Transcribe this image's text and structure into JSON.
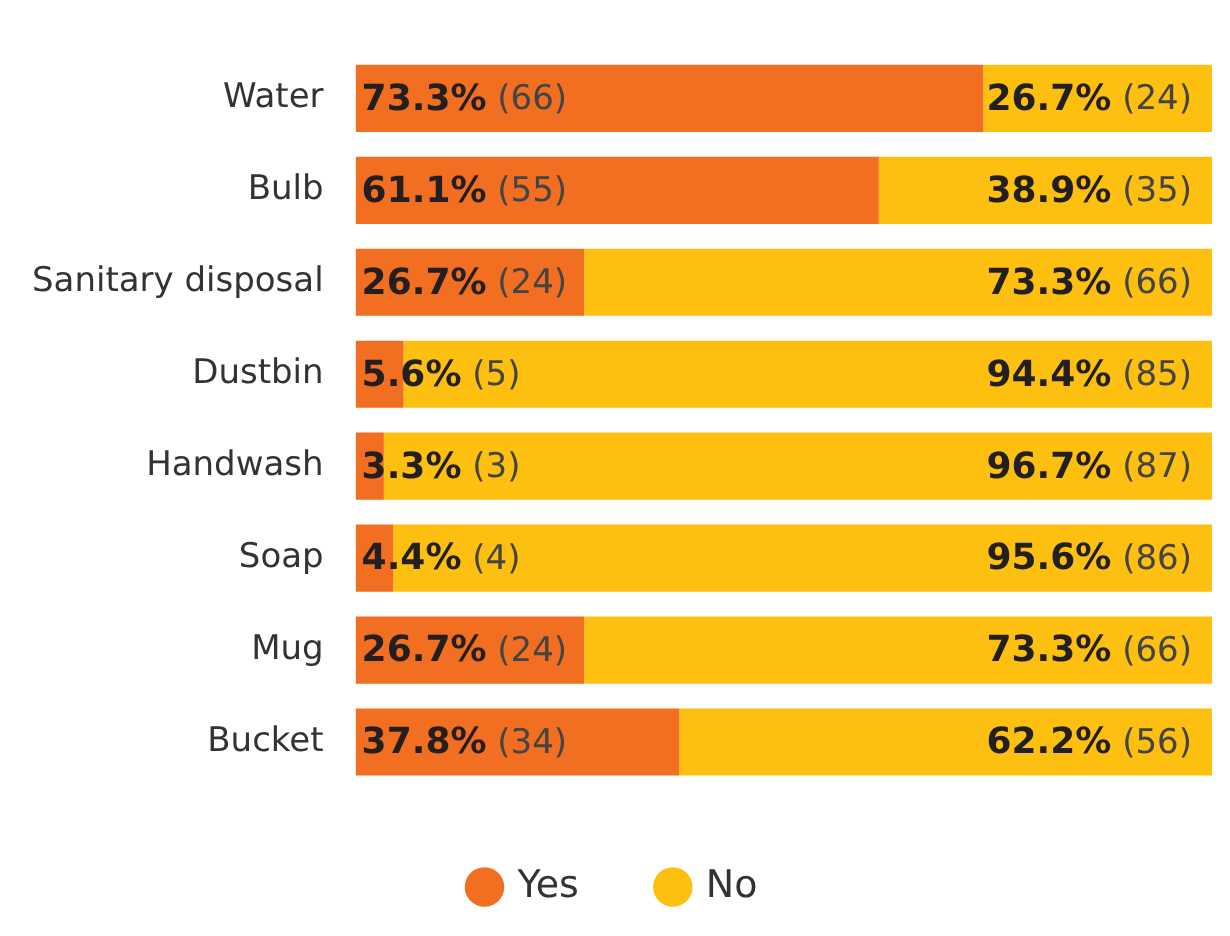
{
  "chart_data": {
    "type": "bar",
    "orientation": "horizontal",
    "stacked": true,
    "categories": [
      "Water",
      "Bulb",
      "Sanitary disposal",
      "Dustbin",
      "Handwash",
      "Soap",
      "Mug",
      "Bucket"
    ],
    "series": [
      {
        "name": "Yes",
        "color": "#f26f21",
        "values": [
          73.3,
          61.1,
          26.7,
          5.6,
          3.3,
          4.4,
          26.7,
          37.8
        ],
        "value_labels": [
          "73.3% (66)",
          "61.1% (55)",
          "26.7% (24)",
          "5.6% (5)",
          "3.3% (3)",
          "4.4% (4)",
          "26.7% (24)",
          "37.8% (34)"
        ]
      },
      {
        "name": "No",
        "color": "#fdc010",
        "values": [
          26.7,
          38.9,
          73.3,
          94.4,
          96.7,
          95.6,
          73.3,
          62.2
        ],
        "value_labels": [
          "26.7% (24)",
          "38.9% (35)",
          "73.3% (66)",
          "94.4% (85)",
          "96.7% (87)",
          "95.6% (86)",
          "73.3% (66)",
          "62.2% (56)"
        ]
      }
    ],
    "legend": "bottom"
  }
}
